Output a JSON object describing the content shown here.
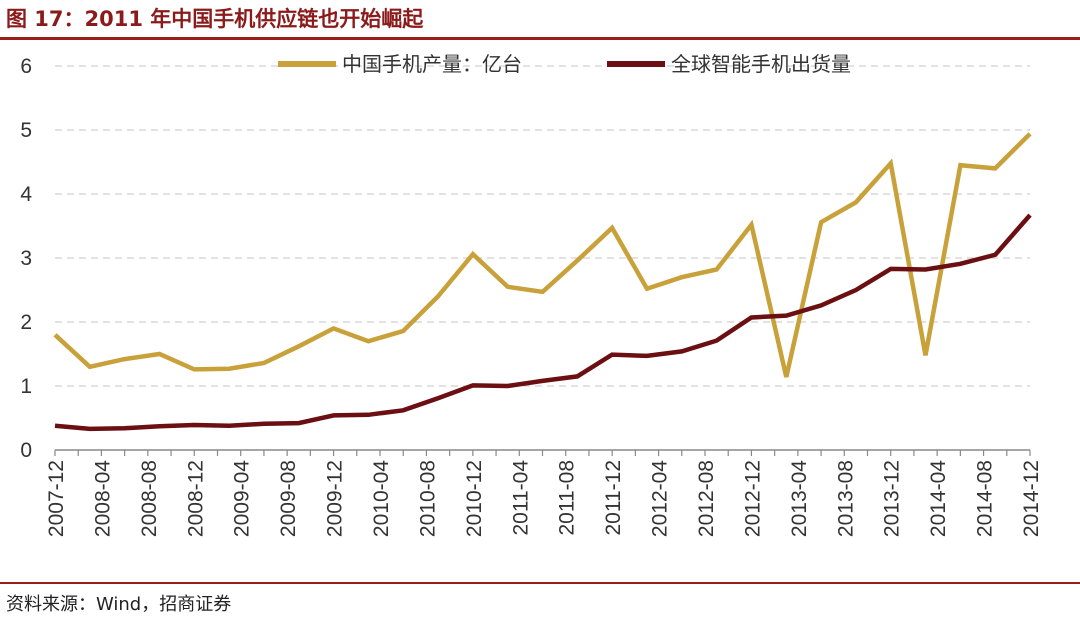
{
  "header": {
    "title": "图 17：2011 年中国手机供应链也开始崛起"
  },
  "footer": {
    "source": "资料来源：Wind，招商证券"
  },
  "colors": {
    "accent": "#9b1c1c",
    "series1": "#c9a13a",
    "series2": "#6b0f12",
    "grid": "#d9d9d9"
  },
  "chart_data": {
    "type": "line",
    "title": "",
    "xlabel": "",
    "ylabel": "",
    "ylim": [
      0,
      6
    ],
    "yticks": [
      0,
      1,
      2,
      3,
      4,
      5,
      6
    ],
    "grid": true,
    "legend_position": "top",
    "x": [
      "2007-12",
      "2008-02",
      "2008-04",
      "2008-06",
      "2008-08",
      "2008-10",
      "2008-12",
      "2009-02",
      "2009-04",
      "2009-06",
      "2009-08",
      "2009-10",
      "2009-12",
      "2010-02",
      "2010-04",
      "2010-06",
      "2010-08",
      "2010-10",
      "2010-12",
      "2011-02",
      "2011-04",
      "2011-06",
      "2011-08",
      "2011-10",
      "2011-12",
      "2012-02",
      "2012-04",
      "2012-06",
      "2012-08",
      "2012-10",
      "2012-12",
      "2013-02",
      "2013-04",
      "2013-06",
      "2013-08",
      "2013-10",
      "2013-12",
      "2014-02",
      "2014-04",
      "2014-06",
      "2014-08",
      "2014-10",
      "2014-12"
    ],
    "x_tick_labels": [
      "2007-12",
      "2008-04",
      "2008-08",
      "2008-12",
      "2009-04",
      "2009-08",
      "2009-12",
      "2010-04",
      "2010-08",
      "2010-12",
      "2011-04",
      "2011-08",
      "2011-12",
      "2012-04",
      "2012-08",
      "2012-12",
      "2013-04",
      "2013-08",
      "2013-12",
      "2014-04",
      "2014-08",
      "2014-12"
    ],
    "series": [
      {
        "name": "中国手机产量：亿台",
        "color": "#c9a13a",
        "points": [
          [
            "2007-12",
            1.8
          ],
          [
            "2008-03",
            1.3
          ],
          [
            "2008-06",
            1.42
          ],
          [
            "2008-09",
            1.5
          ],
          [
            "2008-12",
            1.26
          ],
          [
            "2009-03",
            1.27
          ],
          [
            "2009-06",
            1.36
          ],
          [
            "2009-09",
            1.62
          ],
          [
            "2009-12",
            1.9
          ],
          [
            "2010-03",
            1.7
          ],
          [
            "2010-06",
            1.86
          ],
          [
            "2010-09",
            2.4
          ],
          [
            "2010-12",
            3.06
          ],
          [
            "2011-03",
            2.55
          ],
          [
            "2011-06",
            2.47
          ],
          [
            "2011-09",
            2.96
          ],
          [
            "2011-12",
            3.47
          ],
          [
            "2012-03",
            2.52
          ],
          [
            "2012-06",
            2.7
          ],
          [
            "2012-09",
            2.82
          ],
          [
            "2012-12",
            3.52
          ],
          [
            "2013-03",
            1.14
          ],
          [
            "2013-06",
            3.56
          ],
          [
            "2013-09",
            3.87
          ],
          [
            "2013-12",
            4.48
          ],
          [
            "2014-03",
            1.48
          ],
          [
            "2014-06",
            4.45
          ],
          [
            "2014-09",
            4.4
          ],
          [
            "2014-12",
            4.94
          ]
        ]
      },
      {
        "name": "全球智能手机出货量",
        "color": "#6b0f12",
        "points": [
          [
            "2007-12",
            0.38
          ],
          [
            "2008-03",
            0.33
          ],
          [
            "2008-06",
            0.34
          ],
          [
            "2008-09",
            0.37
          ],
          [
            "2008-12",
            0.39
          ],
          [
            "2009-03",
            0.38
          ],
          [
            "2009-06",
            0.41
          ],
          [
            "2009-09",
            0.42
          ],
          [
            "2009-12",
            0.54
          ],
          [
            "2010-03",
            0.55
          ],
          [
            "2010-06",
            0.62
          ],
          [
            "2010-09",
            0.81
          ],
          [
            "2010-12",
            1.01
          ],
          [
            "2011-03",
            1.0
          ],
          [
            "2011-06",
            1.08
          ],
          [
            "2011-09",
            1.15
          ],
          [
            "2011-12",
            1.49
          ],
          [
            "2012-03",
            1.47
          ],
          [
            "2012-06",
            1.54
          ],
          [
            "2012-09",
            1.71
          ],
          [
            "2012-12",
            2.07
          ],
          [
            "2013-03",
            2.1
          ],
          [
            "2013-06",
            2.26
          ],
          [
            "2013-09",
            2.5
          ],
          [
            "2013-12",
            2.83
          ],
          [
            "2014-03",
            2.82
          ],
          [
            "2014-06",
            2.91
          ],
          [
            "2014-09",
            3.05
          ],
          [
            "2014-12",
            3.67
          ]
        ]
      }
    ]
  }
}
